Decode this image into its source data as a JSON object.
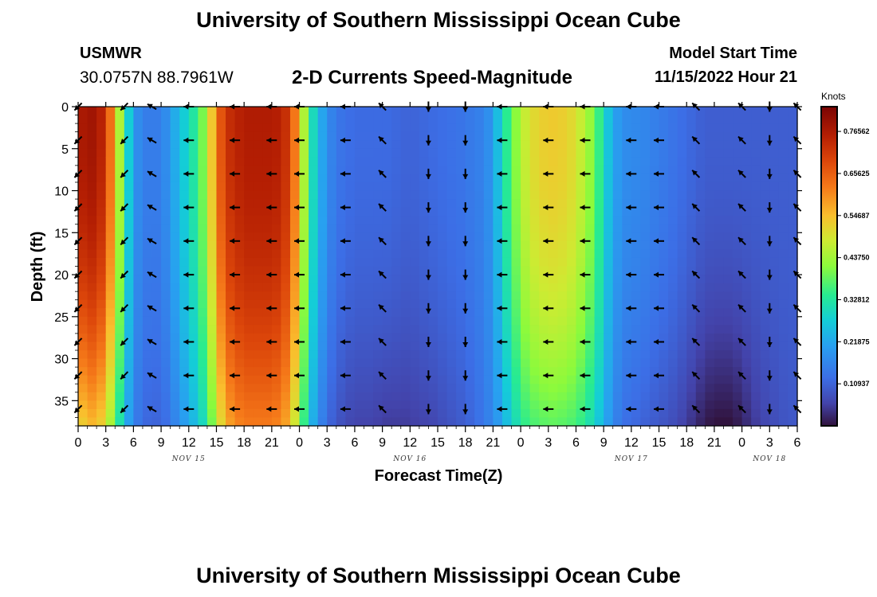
{
  "header": {
    "title": "University of Southern Mississippi Ocean Cube",
    "station": "USMWR",
    "coords": "30.0757N  88.7961W",
    "subtitle": "2-D Currents Speed-Magnitude",
    "model_start_label": "Model Start Time",
    "model_start_value": "11/15/2022 Hour 21"
  },
  "footer": {
    "title": "University of Southern Mississippi Ocean Cube"
  },
  "chart_data": {
    "type": "heatmap",
    "title": "2-D Currents Speed-Magnitude",
    "xlabel": "Forecast Time(Z)",
    "ylabel": "Depth (ft)",
    "x_unit": "forecast hours (0 = 00Z Nov 15)",
    "x_range": [
      0,
      78
    ],
    "x_ticks": [
      0,
      3,
      6,
      9,
      12,
      15,
      18,
      21,
      24,
      27,
      30,
      33,
      36,
      39,
      42,
      45,
      48,
      51,
      54,
      57,
      60,
      63,
      66,
      69,
      72,
      75,
      78
    ],
    "x_tick_labels": [
      "0",
      "3",
      "6",
      "9",
      "12",
      "15",
      "18",
      "21",
      "0",
      "3",
      "6",
      "9",
      "12",
      "15",
      "18",
      "21",
      "0",
      "3",
      "6",
      "9",
      "12",
      "15",
      "18",
      "21",
      "0",
      "3",
      "6"
    ],
    "date_labels": [
      {
        "text": "NOV 15",
        "hour": 12
      },
      {
        "text": "NOV 16",
        "hour": 36
      },
      {
        "text": "NOV 17",
        "hour": 60
      },
      {
        "text": "NOV 18",
        "hour": 75
      }
    ],
    "y_range": [
      0,
      38
    ],
    "y_ticks": [
      0,
      5,
      10,
      15,
      20,
      25,
      30,
      35
    ],
    "y_tick_labels": [
      "0",
      "5",
      "10",
      "15",
      "20",
      "25",
      "30",
      "35"
    ],
    "colorbar": {
      "unit": "Knots",
      "min": 0,
      "max": 0.83,
      "tick_values": [
        0.109375,
        0.21875,
        0.328125,
        0.4375,
        0.546875,
        0.65625,
        0.765625
      ],
      "tick_labels": [
        "0.10937",
        "0.21875",
        "0.32812",
        "0.43750",
        "0.54687",
        "0.65625",
        "0.76562"
      ]
    },
    "speed_profile": {
      "hours": [
        0,
        1,
        2,
        3,
        4,
        5,
        6,
        7,
        8,
        9,
        10,
        11,
        12,
        13,
        14,
        15,
        16,
        17,
        18,
        19,
        20,
        21,
        22,
        23,
        24,
        25,
        26,
        27,
        28,
        29,
        30,
        31,
        32,
        33,
        34,
        35,
        36,
        37,
        38,
        39,
        40,
        41,
        42,
        43,
        44,
        45,
        46,
        47,
        48,
        49,
        50,
        51,
        52,
        53,
        54,
        55,
        56,
        57,
        58,
        59,
        60,
        61,
        62,
        63,
        64,
        65,
        66,
        67,
        68,
        69,
        70,
        71,
        72,
        73,
        74,
        75,
        76,
        77,
        78
      ],
      "surface_knots": [
        0.76,
        0.78,
        0.78,
        0.72,
        0.55,
        0.35,
        0.2,
        0.15,
        0.15,
        0.15,
        0.2,
        0.25,
        0.3,
        0.35,
        0.45,
        0.62,
        0.72,
        0.74,
        0.76,
        0.76,
        0.76,
        0.76,
        0.75,
        0.7,
        0.55,
        0.35,
        0.25,
        0.18,
        0.14,
        0.13,
        0.12,
        0.12,
        0.12,
        0.12,
        0.12,
        0.11,
        0.11,
        0.11,
        0.12,
        0.12,
        0.13,
        0.13,
        0.14,
        0.15,
        0.16,
        0.2,
        0.3,
        0.38,
        0.45,
        0.5,
        0.52,
        0.53,
        0.53,
        0.52,
        0.5,
        0.45,
        0.4,
        0.3,
        0.22,
        0.18,
        0.17,
        0.17,
        0.16,
        0.15,
        0.14,
        0.13,
        0.12,
        0.11,
        0.1,
        0.1,
        0.1,
        0.1,
        0.1,
        0.1,
        0.1,
        0.1,
        0.1,
        0.1,
        0.1
      ],
      "bottom_knots": [
        0.5,
        0.55,
        0.55,
        0.5,
        0.38,
        0.25,
        0.16,
        0.12,
        0.11,
        0.11,
        0.14,
        0.18,
        0.22,
        0.26,
        0.33,
        0.46,
        0.56,
        0.6,
        0.62,
        0.62,
        0.62,
        0.62,
        0.6,
        0.55,
        0.42,
        0.27,
        0.18,
        0.12,
        0.09,
        0.07,
        0.06,
        0.06,
        0.06,
        0.05,
        0.05,
        0.05,
        0.05,
        0.06,
        0.06,
        0.07,
        0.08,
        0.09,
        0.1,
        0.12,
        0.14,
        0.17,
        0.22,
        0.28,
        0.33,
        0.36,
        0.37,
        0.38,
        0.38,
        0.37,
        0.36,
        0.33,
        0.29,
        0.23,
        0.17,
        0.13,
        0.12,
        0.11,
        0.1,
        0.09,
        0.08,
        0.07,
        0.05,
        0.03,
        0.01,
        0.0,
        0.0,
        0.0,
        0.02,
        0.04,
        0.06,
        0.07,
        0.08,
        0.09,
        0.09
      ]
    },
    "vectors": {
      "hours": [
        0,
        5,
        8,
        12,
        17,
        21,
        24,
        29,
        33,
        38,
        42,
        46,
        51,
        55,
        60,
        63,
        67,
        72,
        75,
        78
      ],
      "depths_ft": [
        0,
        4,
        8,
        12,
        16,
        20,
        24,
        28,
        32,
        36
      ],
      "direction_deg": [
        135,
        135,
        210,
        180,
        180,
        180,
        180,
        180,
        225,
        90,
        90,
        180,
        180,
        180,
        180,
        180,
        225,
        225,
        90,
        225
      ]
    }
  }
}
